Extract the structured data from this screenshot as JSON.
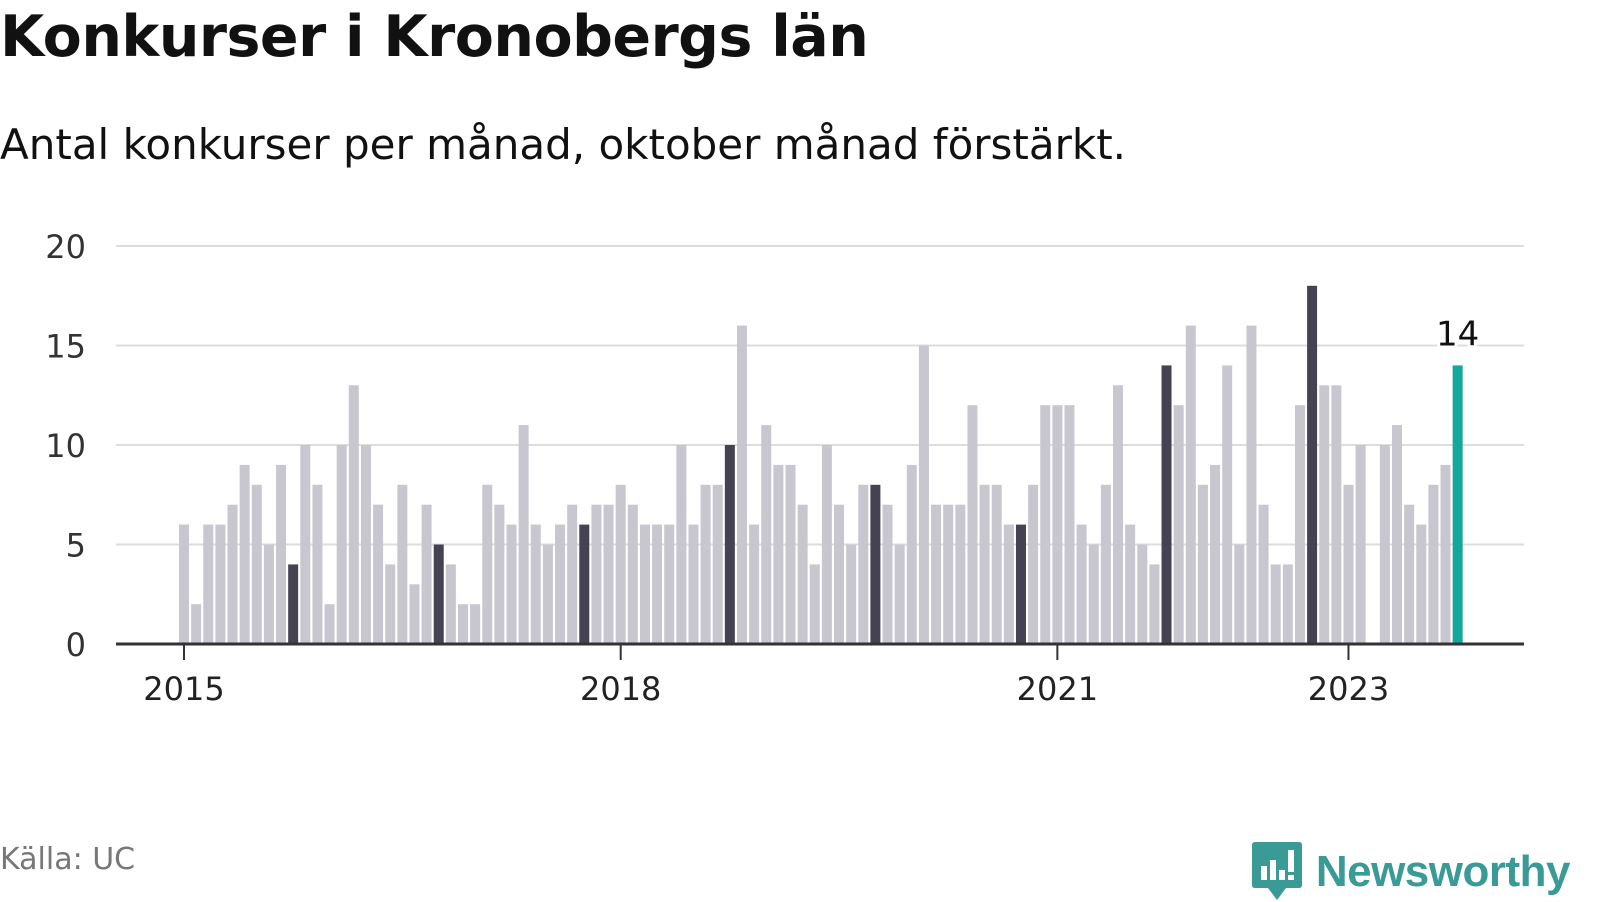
{
  "title": "Konkurser i Kronobergs län",
  "subtitle": "Antal konkurser per månad, oktober månad förstärkt.",
  "source": "Källa: UC",
  "brand": "Newsworthy",
  "colors": {
    "bar": "#c8c7d0",
    "highlight": "#454352",
    "latest": "#14a79b",
    "grid": "#dddddd",
    "axis": "#333333"
  },
  "chart_data": {
    "type": "bar",
    "x_axis_type": "month",
    "start_month": "2015-01",
    "xticks": [
      "2015",
      "2018",
      "2021",
      "2023"
    ],
    "yticks": [
      0,
      5,
      10,
      15,
      20
    ],
    "ylim": [
      0,
      20
    ],
    "grid": true,
    "highlighted_month": "oktober",
    "latest_label": "14",
    "values": [
      6,
      2,
      6,
      6,
      7,
      9,
      8,
      5,
      9,
      4,
      10,
      8,
      2,
      10,
      13,
      10,
      7,
      4,
      8,
      3,
      7,
      5,
      4,
      2,
      2,
      8,
      7,
      6,
      11,
      6,
      5,
      6,
      7,
      6,
      7,
      7,
      8,
      7,
      6,
      6,
      6,
      10,
      6,
      8,
      8,
      10,
      16,
      6,
      11,
      9,
      9,
      7,
      4,
      10,
      7,
      5,
      8,
      8,
      7,
      5,
      9,
      15,
      7,
      7,
      7,
      12,
      8,
      8,
      6,
      6,
      8,
      12,
      12,
      12,
      6,
      5,
      8,
      13,
      6,
      5,
      4,
      14,
      12,
      16,
      8,
      9,
      14,
      5,
      16,
      7,
      4,
      4,
      12,
      18,
      13,
      13,
      8,
      10,
      0,
      10,
      11,
      7,
      6,
      8,
      9,
      14
    ]
  }
}
